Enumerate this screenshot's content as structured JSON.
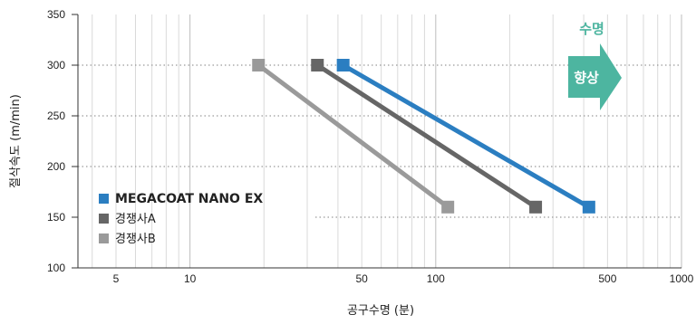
{
  "chart_data": {
    "type": "line",
    "xscale": "log",
    "xlim": [
      3.5,
      1000
    ],
    "ylim": [
      100,
      350
    ],
    "xlabel": "공구수명 (분)",
    "ylabel": "절삭속도 (m/min)",
    "x_ticks": [
      "5",
      "10",
      "50",
      "100",
      "500",
      "1000"
    ],
    "y_ticks": [
      "100",
      "150",
      "200",
      "250",
      "300",
      "350"
    ],
    "series": [
      {
        "name": "MEGACOAT NANO EX",
        "color": "#2b7ec1",
        "x": [
          42,
          420
        ],
        "y": [
          300,
          160
        ]
      },
      {
        "name": "경쟁사A",
        "color": "#666666",
        "x": [
          33,
          255
        ],
        "y": [
          300,
          160
        ]
      },
      {
        "name": "경쟁사B",
        "color": "#9a9a9a",
        "x": [
          19,
          112
        ],
        "y": [
          300,
          160
        ]
      }
    ],
    "legend_position": "bottom-left",
    "annotation": {
      "top": "수명",
      "box": "향상",
      "color": "#4db5a0"
    }
  }
}
